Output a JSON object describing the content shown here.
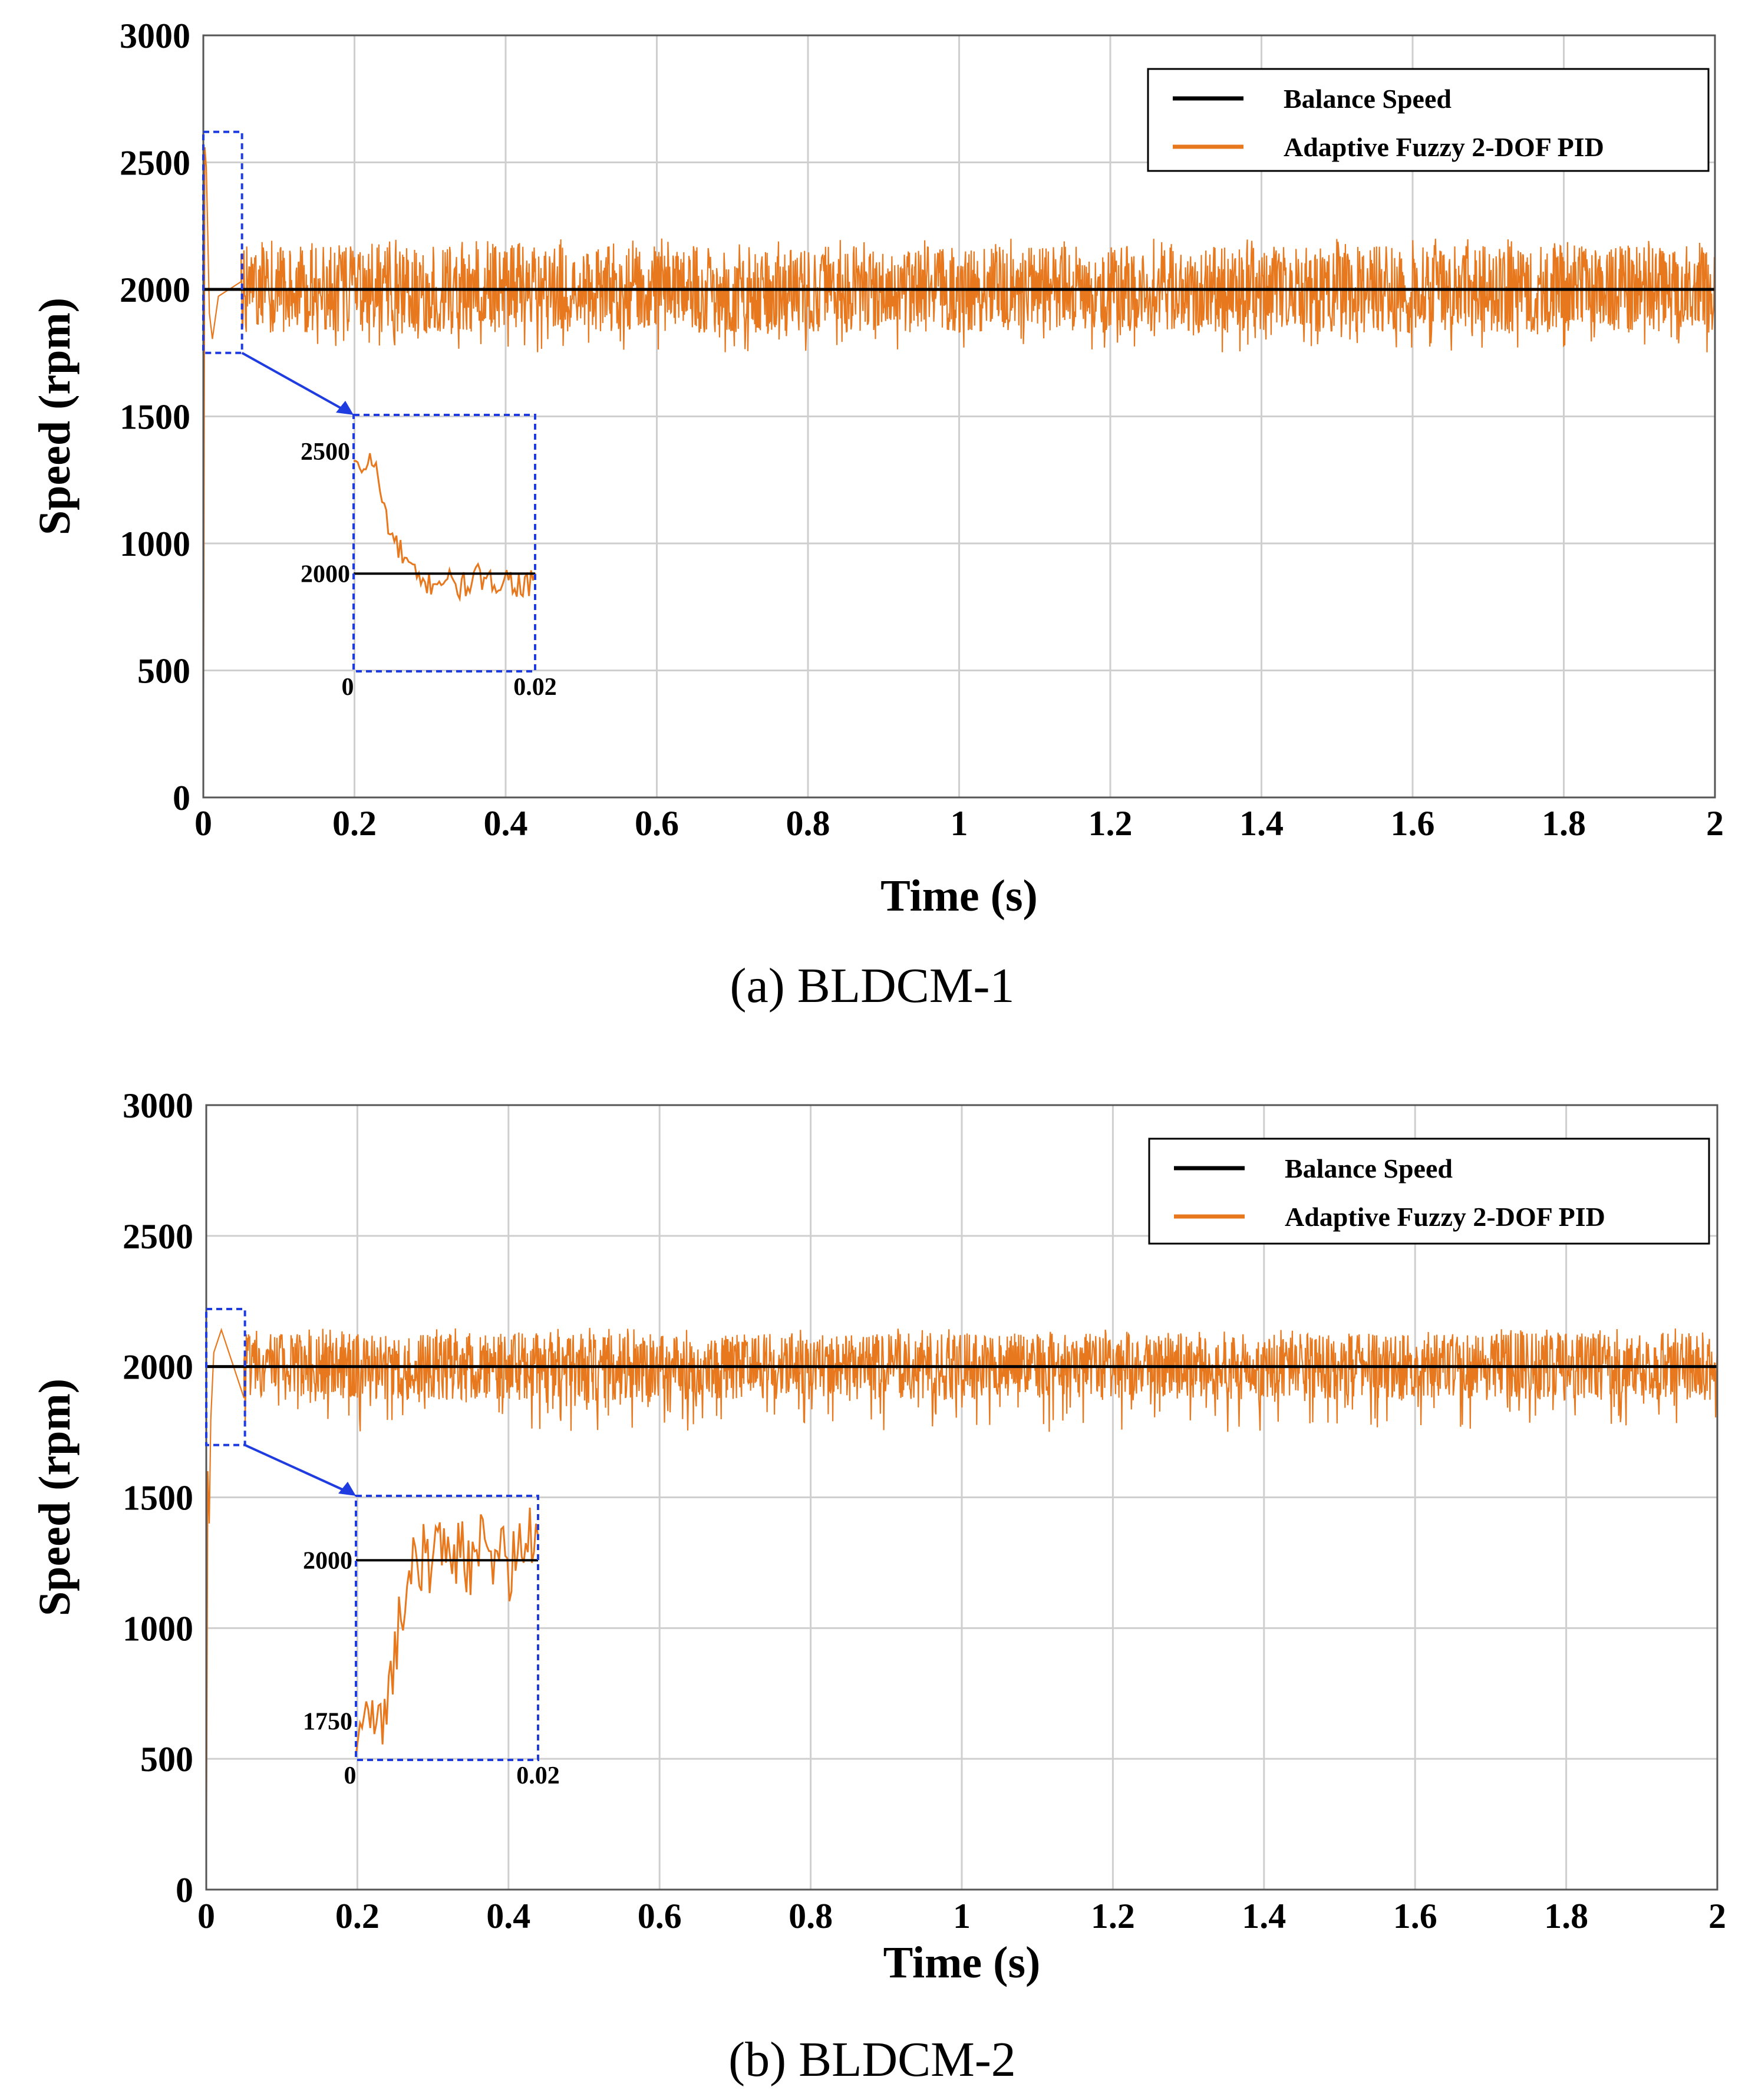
{
  "chart_data": [
    {
      "type": "line",
      "panel": "a",
      "caption": "(a) BLDCM-1",
      "xlabel": "Time (s)",
      "ylabel": "Speed (rpm)",
      "xlim": [
        0,
        2
      ],
      "ylim": [
        0,
        3000
      ],
      "xticks": [
        "0",
        "0.2",
        "0.4",
        "0.6",
        "0.8",
        "1",
        "1.2",
        "1.4",
        "1.6",
        "1.8",
        "2"
      ],
      "yticks": [
        "0",
        "500",
        "1000",
        "1500",
        "2000",
        "2500",
        "3000"
      ],
      "grid": true,
      "legend_position": "top-right",
      "series": [
        {
          "name": "Balance Speed",
          "color": "#000000",
          "x": [
            0,
            2
          ],
          "y": [
            2000,
            2000
          ]
        },
        {
          "name": "Adaptive Fuzzy 2-DOF PID",
          "color": "#e8781e",
          "x": [
            0,
            0.002,
            0.004,
            0.006,
            0.008,
            0.012,
            0.02,
            0.05,
            0.1,
            0.5,
            1.0,
            1.5,
            2.0
          ],
          "y": [
            0,
            2560,
            2480,
            2200,
            2050,
            1950,
            1960,
            1990,
            2000,
            2000,
            2000,
            2000,
            2000
          ],
          "noise_band": [
            1750,
            2200
          ]
        }
      ],
      "zoom_box": {
        "xlim": [
          0,
          0.02
        ],
        "ylim": [
          1750,
          2620
        ]
      },
      "inset": {
        "xticks": [
          "0",
          "0.02"
        ],
        "yticks": [
          "2000",
          "2500"
        ],
        "xlim": [
          0,
          0.02
        ],
        "ylim": [
          1600,
          2650
        ],
        "y": [
          2460,
          2420,
          2480,
          2300,
          2150,
          2080,
          2020,
          1950,
          1960,
          1980,
          1970,
          1940,
          1960,
          1990,
          1950,
          1975,
          1985,
          1960,
          1945,
          1970
        ]
      }
    },
    {
      "type": "line",
      "panel": "b",
      "caption": "(b) BLDCM-2",
      "xlabel": "Time (s)",
      "ylabel": "Speed (rpm)",
      "xlim": [
        0,
        2
      ],
      "ylim": [
        0,
        3000
      ],
      "xticks": [
        "0",
        "0.2",
        "0.4",
        "0.6",
        "0.8",
        "1",
        "1.2",
        "1.4",
        "1.6",
        "1.8",
        "2"
      ],
      "yticks": [
        "0",
        "500",
        "1000",
        "1500",
        "2000",
        "2500",
        "3000"
      ],
      "grid": true,
      "legend_position": "top-right",
      "series": [
        {
          "name": "Balance Speed",
          "color": "#000000",
          "x": [
            0,
            2
          ],
          "y": [
            2000,
            2000
          ]
        },
        {
          "name": "Adaptive Fuzzy 2-DOF PID",
          "color": "#e8781e",
          "x": [
            0,
            0.002,
            0.004,
            0.006,
            0.01,
            0.02,
            0.05,
            0.1,
            0.5,
            1.0,
            1.5,
            2.0
          ],
          "y": [
            0,
            1600,
            1400,
            1800,
            2050,
            2100,
            2020,
            2000,
            2000,
            2000,
            2000,
            2000
          ],
          "noise_band": [
            1750,
            2150
          ]
        }
      ],
      "zoom_box": {
        "xlim": [
          0,
          0.02
        ],
        "ylim": [
          1700,
          2220
        ]
      },
      "inset": {
        "xticks": [
          "0",
          "0.02"
        ],
        "yticks": [
          "1750",
          "2000"
        ],
        "xlim": [
          0,
          0.02
        ],
        "ylim": [
          1690,
          2100
        ],
        "y": [
          1700,
          1780,
          1730,
          1760,
          1850,
          1950,
          1990,
          2010,
          2000,
          2030,
          2010,
          2020,
          1990,
          2025,
          2000,
          2030,
          1980,
          2020,
          2030,
          2010
        ]
      }
    }
  ]
}
